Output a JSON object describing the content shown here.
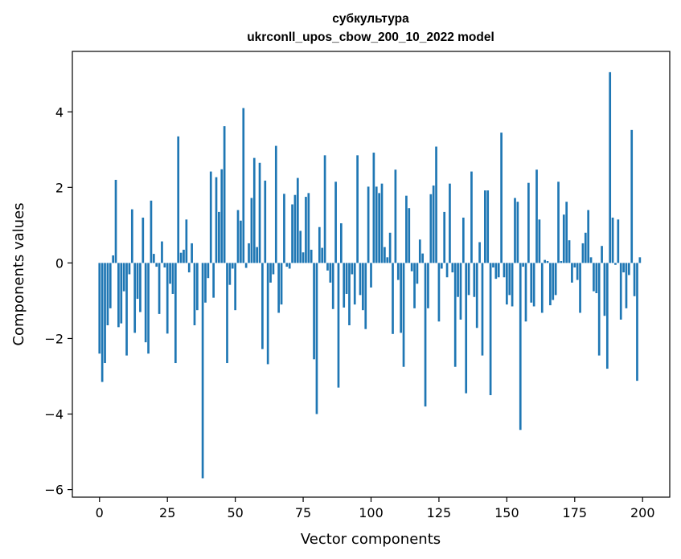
{
  "chart_data": {
    "type": "bar",
    "title": "субкультура",
    "subtitle": "ukrconll_upos_cbow_200_10_2022 model",
    "xlabel": "Vector components",
    "ylabel": "Components values",
    "xlim": [
      -10,
      210
    ],
    "ylim": [
      -6.2,
      5.6
    ],
    "xticks": [
      0,
      25,
      50,
      75,
      100,
      125,
      150,
      175,
      200
    ],
    "yticks": [
      -6,
      -4,
      -2,
      0,
      2,
      4
    ],
    "ytick_labels": [
      "−6",
      "−4",
      "−2",
      "0",
      "2",
      "4"
    ],
    "grid": false,
    "bar_color": "#1f77b4",
    "values": [
      -2.4,
      -3.15,
      -2.65,
      -1.65,
      -1.2,
      0.2,
      2.2,
      -1.7,
      -1.6,
      -0.75,
      -2.45,
      -0.3,
      1.42,
      -1.85,
      -0.95,
      -1.3,
      1.2,
      -2.1,
      -2.4,
      1.65,
      0.24,
      -0.1,
      -1.35,
      0.57,
      -0.12,
      -1.87,
      -0.55,
      -0.82,
      -2.65,
      3.35,
      0.27,
      0.35,
      1.15,
      -0.25,
      0.52,
      -1.65,
      -1.25,
      0.0,
      -5.7,
      -1.05,
      -0.4,
      2.42,
      -0.92,
      2.27,
      1.35,
      2.48,
      3.62,
      -2.65,
      -0.58,
      -0.15,
      -1.25,
      1.4,
      1.12,
      4.1,
      -0.13,
      0.52,
      1.72,
      2.78,
      0.42,
      2.65,
      -2.28,
      2.18,
      -2.68,
      -0.52,
      -0.3,
      3.1,
      -1.32,
      -1.1,
      1.83,
      -0.1,
      -0.15,
      1.55,
      1.8,
      2.25,
      0.85,
      0.28,
      1.75,
      1.85,
      0.35,
      -2.55,
      -4.0,
      0.95,
      0.4,
      2.85,
      -0.2,
      -0.52,
      -1.22,
      2.15,
      -3.3,
      1.05,
      -1.18,
      -0.82,
      -1.65,
      -0.3,
      -1.1,
      2.85,
      -0.85,
      -1.25,
      -1.75,
      2.02,
      -0.65,
      2.92,
      2.02,
      1.85,
      2.1,
      0.42,
      0.15,
      0.8,
      -1.88,
      2.47,
      -0.45,
      -1.85,
      -2.75,
      1.78,
      1.45,
      -0.22,
      -1.2,
      -0.55,
      0.62,
      0.25,
      -3.8,
      -1.2,
      1.82,
      2.05,
      3.08,
      -1.55,
      -0.15,
      1.35,
      -0.38,
      2.1,
      -0.25,
      -2.75,
      -0.9,
      -1.5,
      1.2,
      -3.45,
      -0.85,
      2.42,
      -0.9,
      -1.72,
      0.55,
      -2.45,
      1.92,
      1.92,
      -3.5,
      -0.12,
      -0.42,
      -0.38,
      3.45,
      -0.38,
      -1.1,
      -0.85,
      -1.15,
      1.72,
      1.62,
      -4.42,
      -0.1,
      -1.55,
      2.12,
      -1.05,
      -1.15,
      2.47,
      1.15,
      -1.32,
      0.08,
      0.05,
      -1.12,
      -0.98,
      -0.85,
      2.15,
      0.05,
      1.28,
      1.62,
      0.6,
      -0.52,
      -0.12,
      -0.45,
      -1.32,
      0.52,
      0.8,
      1.4,
      0.15,
      -0.75,
      -0.8,
      -2.45,
      0.45,
      -1.4,
      -2.8,
      5.05,
      1.2,
      -0.05,
      1.15,
      -1.5,
      -0.25,
      -1.2,
      -0.32,
      3.52,
      -0.88,
      -3.12,
      0.15
    ]
  }
}
